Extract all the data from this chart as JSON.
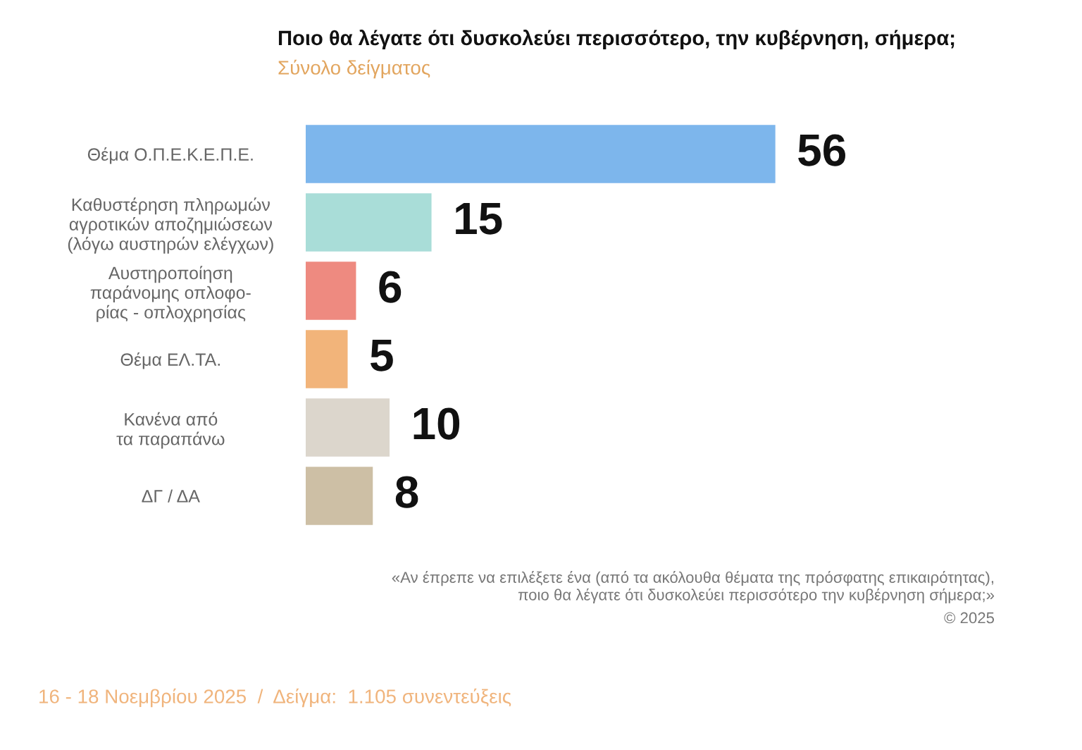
{
  "chart_data": {
    "type": "bar",
    "orientation": "horizontal",
    "title": "Ποιο θα λέγατε ότι δυσκολεύει περισσότερο, την κυβέρνηση, σήμερα;",
    "subtitle": "Σύνολο δείγματος",
    "categories": [
      "Θέμα Ο.Π.Ε.Κ.Ε.Π.Ε.",
      "Καθυστέρηση πληρωμών\nαγροτικών αποζημιώσεων\n(λόγω αυστηρών ελέγχων)",
      "Αυστηροποίηση\nπαράνομης οπλοφο-\nρίας - οπλοχρησίας",
      "Θέμα ΕΛ.ΤΑ.",
      "Κανένα από\nτα παραπάνω",
      "ΔΓ / ΔΑ"
    ],
    "values": [
      56,
      15,
      6,
      5,
      10,
      8
    ],
    "colors": [
      "#7db6ec",
      "#a9ddd8",
      "#ee8a80",
      "#f2b47a",
      "#dcd6cc",
      "#cdbfa5"
    ],
    "data_labels": true,
    "annotations": [
      "«Αν έπρεπε να επιλέξετε ένα (από τα ακόλουθα θέματα της πρόσφατης επικαιρότητας),\nποιο θα λέγατε ότι δυσκολεύει περισσότερο την κυβέρνηση σήμερα;»",
      "© 2025",
      "16 - 18 Νοεμβρίου 2025  /  Δείγμα:  1.105 συνεντεύξεις"
    ]
  }
}
